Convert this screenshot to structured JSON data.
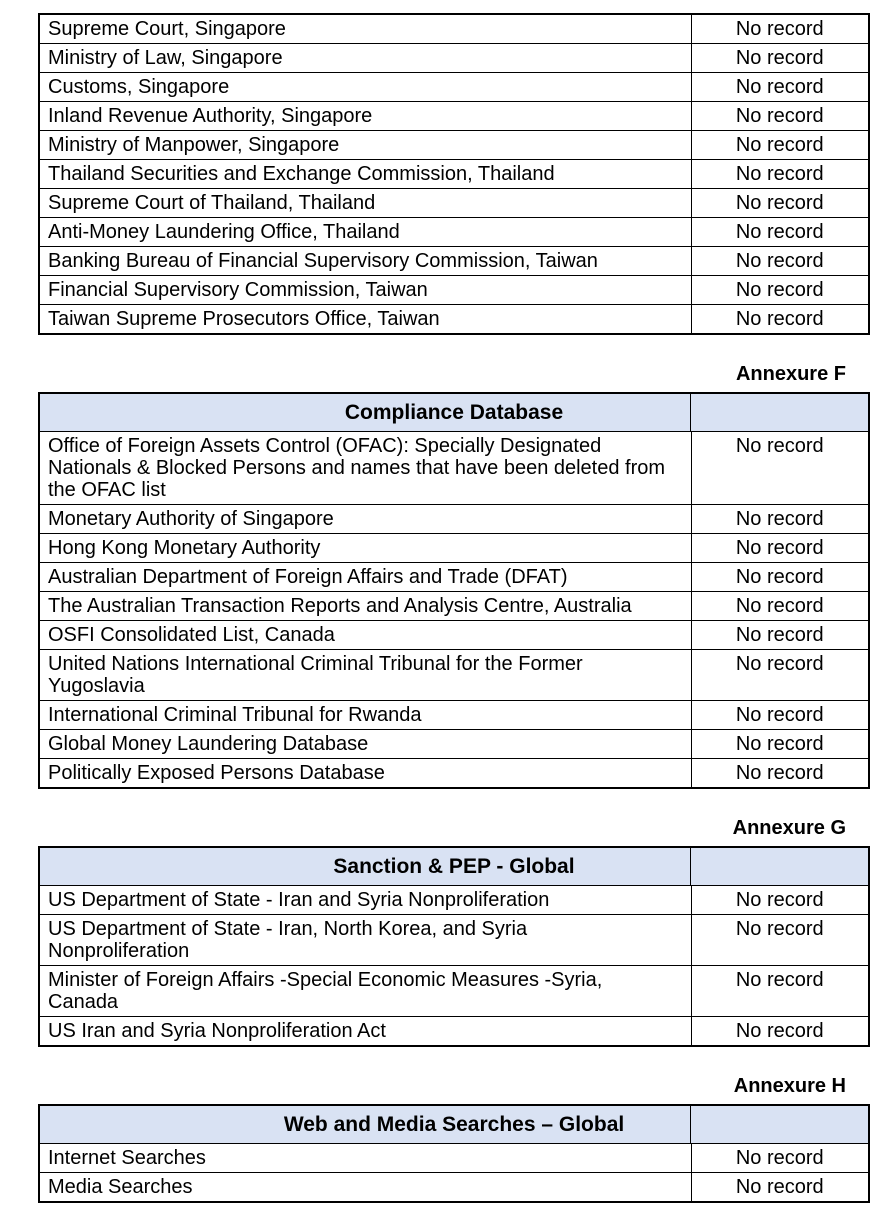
{
  "report": {
    "colors": {
      "header_bg": "#d9e2f3",
      "border": "#000000",
      "text": "#000000",
      "page_bg": "#ffffff"
    },
    "sections": [
      {
        "annexure": "",
        "title": "",
        "rows": [
          {
            "source": "Supreme Court, Singapore",
            "result": "No record"
          },
          {
            "source": "Ministry of Law, Singapore",
            "result": "No record"
          },
          {
            "source": "Customs, Singapore",
            "result": "No record"
          },
          {
            "source": "Inland Revenue Authority, Singapore",
            "result": "No record"
          },
          {
            "source": "Ministry of Manpower, Singapore",
            "result": "No record"
          },
          {
            "source": "Thailand Securities and Exchange Commission, Thailand",
            "result": "No record"
          },
          {
            "source": "Supreme Court of Thailand, Thailand",
            "result": "No record"
          },
          {
            "source": "Anti-Money Laundering Office, Thailand",
            "result": "No record"
          },
          {
            "source": "Banking Bureau of Financial Supervisory Commission, Taiwan",
            "result": "No record"
          },
          {
            "source": "Financial Supervisory Commission, Taiwan",
            "result": "No record"
          },
          {
            "source": "Taiwan Supreme Prosecutors Office, Taiwan",
            "result": "No record"
          }
        ]
      },
      {
        "annexure": "Annexure F",
        "title": "Compliance Database",
        "rows": [
          {
            "source": "Office of Foreign Assets Control (OFAC): Specially Designated\nNationals & Blocked Persons and names that have been deleted from\nthe OFAC list",
            "result": "No record"
          },
          {
            "source": "Monetary Authority of Singapore",
            "result": "No record"
          },
          {
            "source": "Hong Kong Monetary Authority",
            "result": "No record"
          },
          {
            "source": "Australian Department of Foreign Affairs and Trade (DFAT)",
            "result": "No record"
          },
          {
            "source": "The Australian Transaction Reports and Analysis Centre, Australia",
            "result": "No record"
          },
          {
            "source": "OSFI Consolidated List, Canada",
            "result": "No record"
          },
          {
            "source": "United Nations International Criminal Tribunal for the Former\nYugoslavia",
            "result": "No record"
          },
          {
            "source": "International Criminal Tribunal for Rwanda",
            "result": "No record"
          },
          {
            "source": "Global Money Laundering Database",
            "result": "No record"
          },
          {
            "source": "Politically Exposed Persons Database",
            "result": "No record"
          }
        ]
      },
      {
        "annexure": "Annexure G",
        "title": "Sanction & PEP - Global",
        "rows": [
          {
            "source": "US Department of State - Iran and Syria Nonproliferation",
            "result": "No record"
          },
          {
            "source": "US Department of State - Iran, North Korea, and Syria\nNonproliferation",
            "result": "No record"
          },
          {
            "source": "Minister of Foreign Affairs -Special Economic Measures -Syria,\nCanada",
            "result": "No record"
          },
          {
            "source": "US Iran and Syria Nonproliferation Act",
            "result": "No record"
          }
        ]
      },
      {
        "annexure": "Annexure H",
        "title": "Web and Media Searches – Global",
        "rows": [
          {
            "source": "Internet Searches",
            "result": "No record"
          },
          {
            "source": "Media Searches",
            "result": "No record"
          }
        ]
      }
    ]
  }
}
